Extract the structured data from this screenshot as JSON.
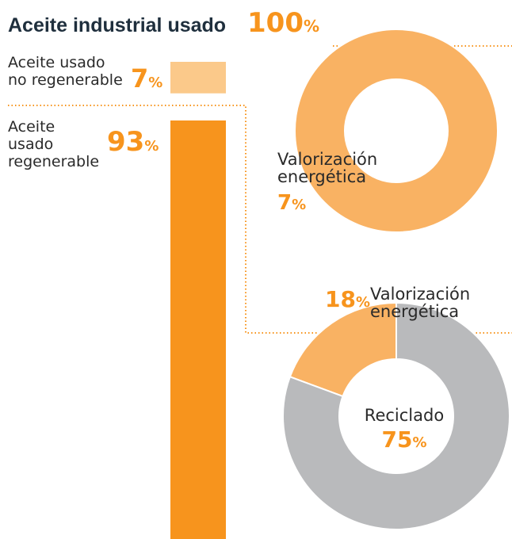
{
  "title": "Aceite industrial usado",
  "total": 100,
  "unit": "%",
  "no_regenerable": {
    "label": [
      "Aceite usado",
      "no regenerable"
    ],
    "value": 7,
    "color": "#fbc98a"
  },
  "regenerable": {
    "label": [
      "Aceite",
      "usado",
      "regenerable"
    ],
    "value": 93,
    "color": "#f7941d"
  },
  "donut1": {
    "segments": [
      {
        "label": [
          "Valorización",
          "energética"
        ],
        "value": 7,
        "color": "#f9b263"
      }
    ]
  },
  "donut2": {
    "segments": [
      {
        "label": [
          "Valorización",
          "energética"
        ],
        "value": 18,
        "color": "#f9b263"
      },
      {
        "label": [
          "Reciclado"
        ],
        "value": 75,
        "color": "#b9babc"
      }
    ]
  }
}
